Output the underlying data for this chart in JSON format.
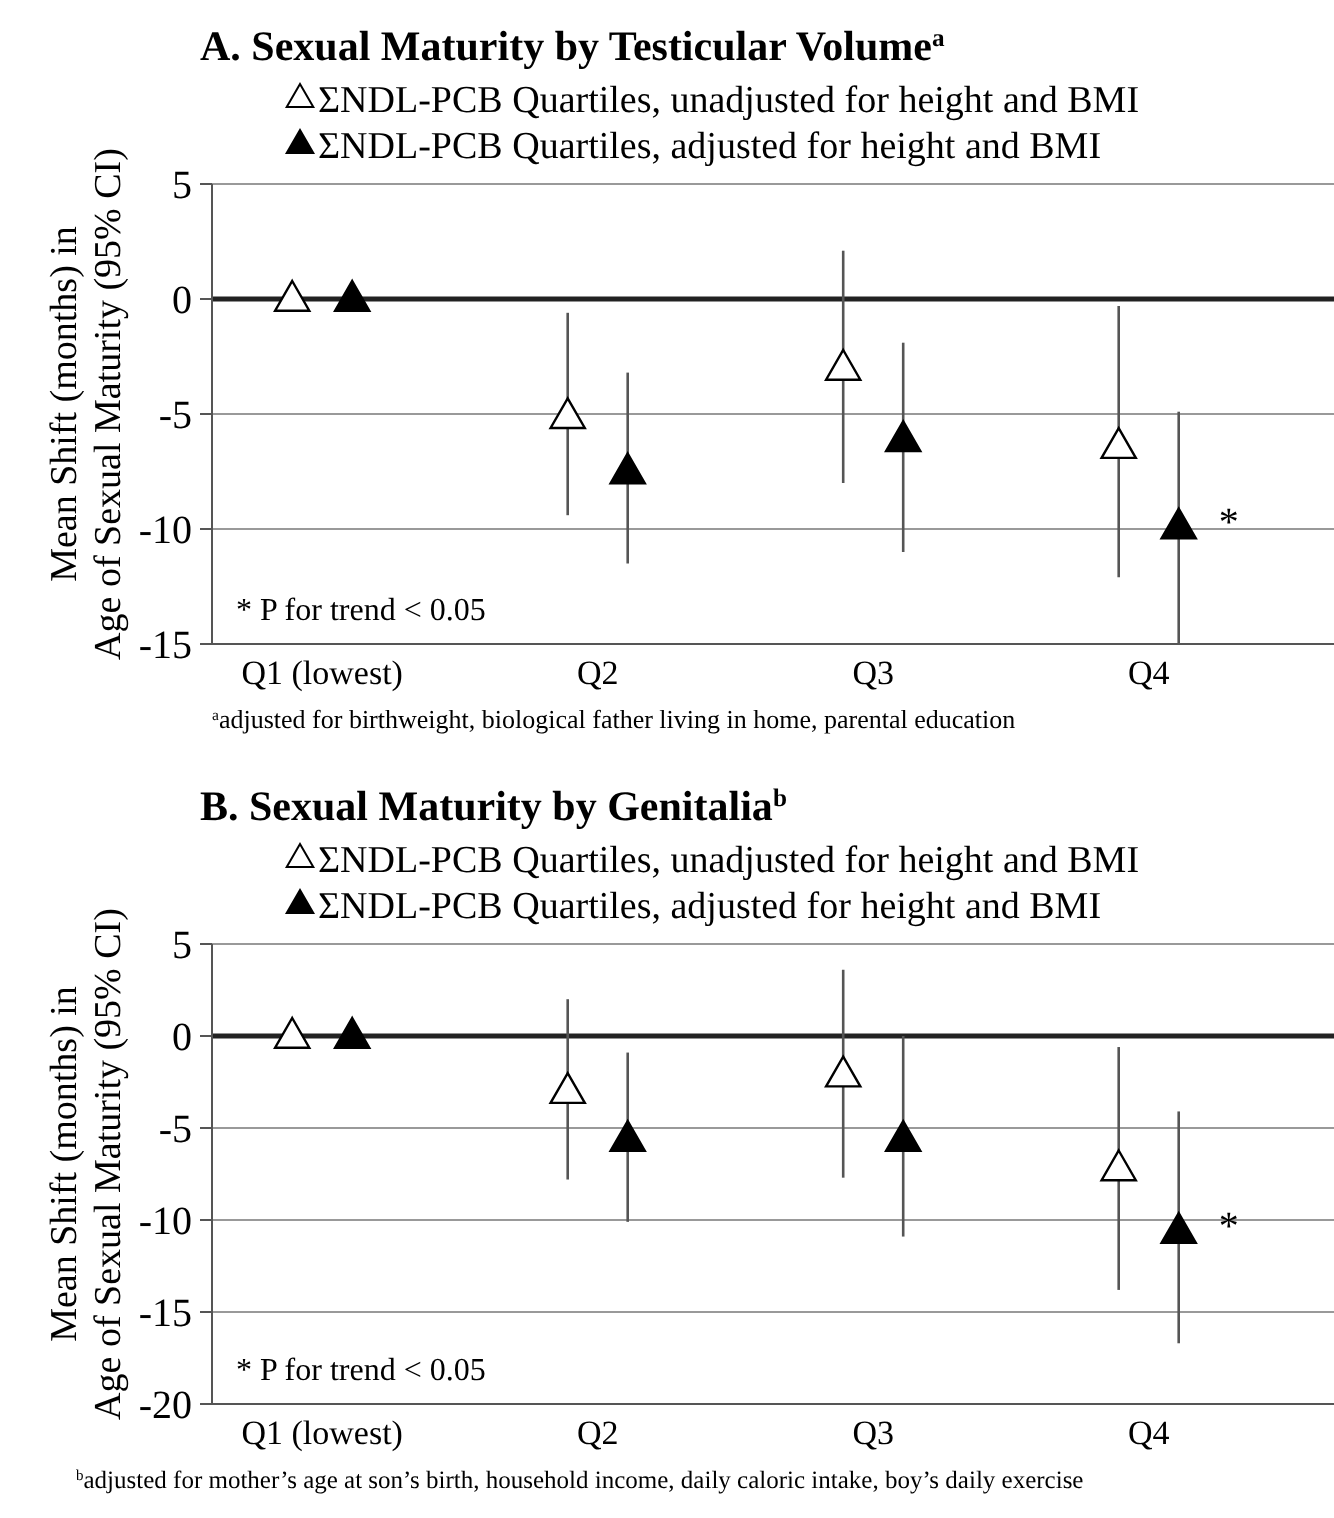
{
  "chart_data": [
    {
      "type": "scatter",
      "title": "A. Sexual Maturity by Testicular Volume$^{a}$",
      "ylabel": "Mean Shift (months) in Age of Sexual Maturity (95% CI)",
      "categories": [
        "Q1 (lowest)",
        "Q2",
        "Q3",
        "Q4"
      ],
      "ylim": [
        -15,
        5
      ],
      "yticks": [
        -15,
        -10,
        -5,
        0,
        5
      ],
      "grid": "y",
      "legend": "top",
      "marker": "triangle",
      "series": [
        {
          "name": "ΣNDL-PCB Quartiles, unadjusted for height and BMI",
          "color": "#ffffff",
          "values": [
            0,
            -5.1,
            -3.0,
            -6.4
          ],
          "errors": [
            null,
            [
              -9.4,
              -0.6
            ],
            [
              -8.0,
              2.1
            ],
            [
              -12.1,
              -0.3
            ]
          ]
        },
        {
          "name": "ΣNDL-PCB Quartiles, adjusted for height and BMI",
          "color": "#000000",
          "values": [
            0,
            -7.5,
            -6.1,
            -9.9
          ],
          "errors": [
            null,
            [
              -11.5,
              -3.2
            ],
            [
              -11.0,
              -1.9
            ],
            [
              -15,
              -4.9
            ]
          ]
        }
      ],
      "ref_lines": [
        {
          "axis": "y",
          "value": 0
        }
      ],
      "annotations": [
        "* P for trend < 0.05",
        "$^{a}$adjusted for birthweight, biological father living in home, parental education",
        "*"
      ]
    },
    {
      "type": "scatter",
      "title": "B.  Sexual Maturity by Genitalia$^{b}$",
      "ylabel": "Mean Shift (months) in Age of Sexual Maturity (95% CI)",
      "categories": [
        "Q1 (lowest)",
        "Q2",
        "Q3",
        "Q4"
      ],
      "ylim": [
        -20,
        5
      ],
      "yticks": [
        -20,
        -15,
        -10,
        -5,
        0,
        5
      ],
      "grid": "y",
      "legend": "top",
      "marker": "triangle",
      "series": [
        {
          "name": "ΣNDL-PCB Quartiles, unadjusted for height and BMI",
          "color": "#ffffff",
          "values": [
            0,
            -3.0,
            -2.1,
            -7.2
          ],
          "errors": [
            null,
            [
              -7.8,
              2.0
            ],
            [
              -7.7,
              3.6
            ],
            [
              -13.8,
              -0.6
            ]
          ]
        },
        {
          "name": "ΣNDL-PCB Quartiles, adjusted for height and BMI",
          "color": "#000000",
          "values": [
            0,
            -5.6,
            -5.6,
            -10.6
          ],
          "errors": [
            null,
            [
              -10.1,
              -0.9
            ],
            [
              -10.9,
              0
            ],
            [
              -16.7,
              -4.1
            ]
          ]
        }
      ],
      "ref_lines": [
        {
          "axis": "y",
          "value": 0
        }
      ],
      "annotations": [
        "* P for trend < 0.05",
        "$^{b}$adjusted for mother’s age at son’s birth, household income, daily caloric intake, boy’s daily exercise",
        "*"
      ]
    }
  ]
}
